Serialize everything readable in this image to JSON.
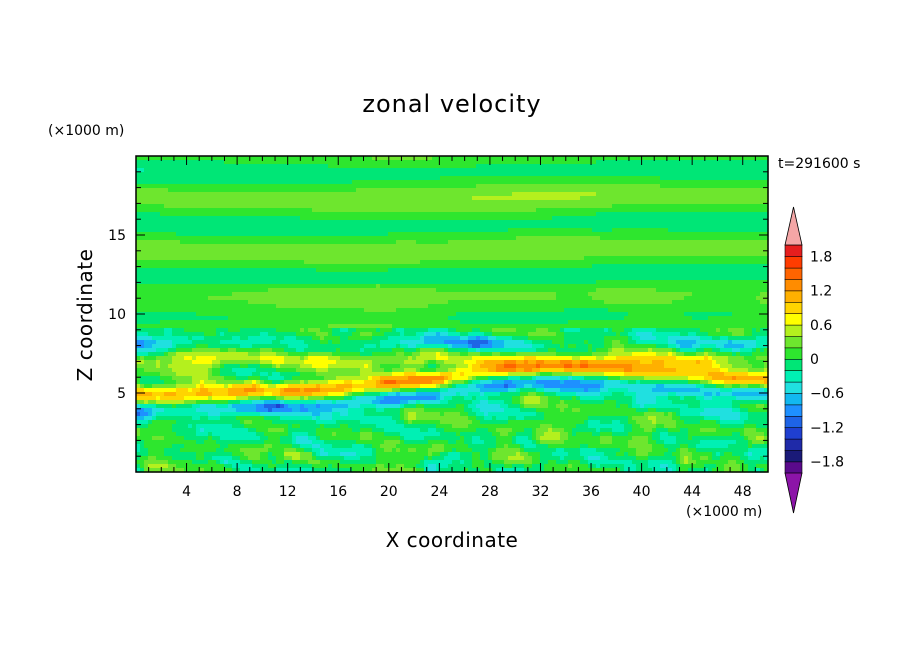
{
  "chart_data": {
    "type": "heatmap",
    "title": "zonal velocity",
    "xlabel": "X coordinate",
    "ylabel": "Z coordinate",
    "x_unit": "(×1000 m)",
    "y_unit": "(×1000 m)",
    "time_label": "t=291600 s",
    "xlim": [
      0,
      50
    ],
    "ylim": [
      0,
      20
    ],
    "x_ticks": [
      4,
      8,
      12,
      16,
      20,
      24,
      28,
      32,
      36,
      40,
      44,
      48
    ],
    "y_ticks": [
      5,
      10,
      15
    ],
    "colorbar": {
      "levels": [
        -2.0,
        -1.8,
        -1.6,
        -1.4,
        -1.2,
        -1.0,
        -0.8,
        -0.6,
        -0.4,
        -0.2,
        0.0,
        0.2,
        0.4,
        0.6,
        0.8,
        1.0,
        1.2,
        1.4,
        1.6,
        1.8,
        2.0
      ],
      "colors": [
        "#5a0a8c",
        "#1a1a78",
        "#1f2aa8",
        "#1f3fd0",
        "#1e64e6",
        "#1e90ff",
        "#12b8f0",
        "#20e0e0",
        "#00f0b4",
        "#00e676",
        "#2ee62e",
        "#6ee62e",
        "#b4f01e",
        "#ffff00",
        "#ffd400",
        "#ffb000",
        "#ff8c00",
        "#ff6400",
        "#ff3c00",
        "#e61e1e"
      ],
      "under_color": "#8c14a8",
      "over_color": "#f4a6a6",
      "tick_labels": [
        "1.8",
        "1.2",
        "0.6",
        "0",
        "−0.6",
        "−1.2",
        "−1.8"
      ],
      "tick_values": [
        1.8,
        1.2,
        0.6,
        0.0,
        -0.6,
        -1.2,
        -1.8
      ]
    },
    "features": [
      {
        "z_center": 17.0,
        "value": 0.15
      },
      {
        "z_center": 14.0,
        "value": 0.1
      },
      {
        "z_center": 11.5,
        "value": 0.15
      },
      {
        "z_center": 8.3,
        "value": -0.6
      },
      {
        "z_center": 7.2,
        "value": 0.5
      },
      {
        "z_center": 5.6,
        "value": 0.9
      },
      {
        "z_center": 4.0,
        "value": -0.5
      },
      {
        "z_center": 2.0,
        "value": 0.3
      }
    ]
  }
}
